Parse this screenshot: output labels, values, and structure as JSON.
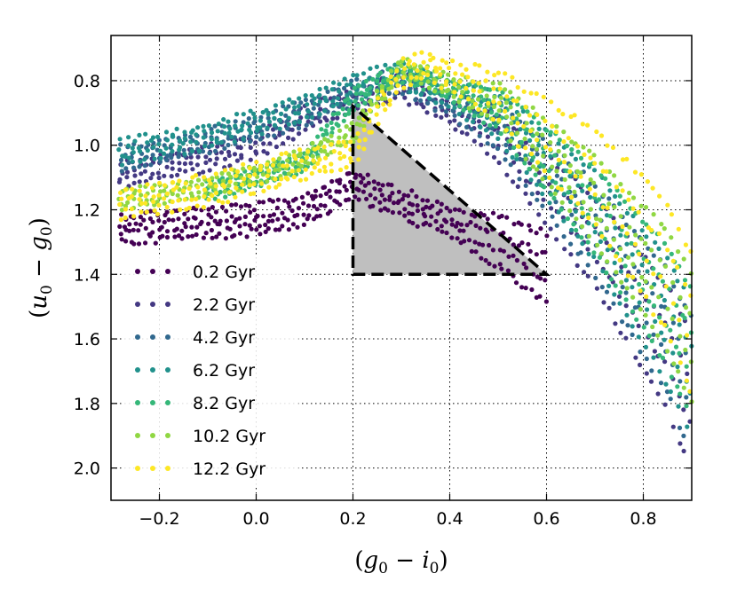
{
  "chart_data": {
    "type": "scatter",
    "title": "",
    "xlabel_parts": {
      "open": "(",
      "a": "g",
      "a_sub": "0",
      "op": " − ",
      "b": "i",
      "b_sub": "0",
      "close": ")"
    },
    "ylabel_parts": {
      "open": "(",
      "a": "u",
      "a_sub": "0",
      "op": " − ",
      "b": "g",
      "b_sub": "0",
      "close": ")"
    },
    "xlim": [
      -0.3,
      0.9
    ],
    "ylim": [
      2.1,
      0.66
    ],
    "y_inverted": true,
    "grid": true,
    "xticks": [
      -0.2,
      0.0,
      0.2,
      0.4,
      0.6,
      0.8
    ],
    "xtick_labels": [
      "−0.2",
      "0.0",
      "0.2",
      "0.4",
      "0.6",
      "0.8"
    ],
    "yticks": [
      0.8,
      1.0,
      1.2,
      1.4,
      1.6,
      1.8,
      2.0
    ],
    "ytick_labels": [
      "0.8",
      "1.0",
      "1.2",
      "1.4",
      "1.6",
      "1.8",
      "2.0"
    ],
    "legend_position": "lower-left",
    "selection_region": {
      "shape": "triangle",
      "vertices": [
        [
          0.2,
          0.88
        ],
        [
          0.2,
          1.4
        ],
        [
          0.6,
          1.4
        ]
      ],
      "fill": "#bfbfbf",
      "edge": "dashed-black"
    },
    "series": [
      {
        "name": "0.2 Gyr",
        "color": "#440154",
        "x": [
          -0.28,
          -0.2,
          -0.1,
          0.0,
          0.1,
          0.2,
          0.3,
          0.4,
          0.5,
          0.6
        ],
        "y": [
          1.26,
          1.25,
          1.24,
          1.23,
          1.2,
          1.12,
          1.18,
          1.24,
          1.3,
          1.38
        ],
        "spread": 0.03
      },
      {
        "name": "2.2 Gyr",
        "color": "#443983",
        "x": [
          -0.28,
          -0.2,
          -0.1,
          0.0,
          0.05,
          0.1,
          0.2,
          0.3,
          0.5,
          0.7,
          0.85,
          0.9
        ],
        "y": [
          1.09,
          1.07,
          1.04,
          1.0,
          0.96,
          0.92,
          0.86,
          0.82,
          0.98,
          1.3,
          1.63,
          1.8
        ],
        "spread": 0.025
      },
      {
        "name": "4.2 Gyr",
        "color": "#31688e",
        "x": [
          -0.28,
          -0.2,
          -0.1,
          0.0,
          0.1,
          0.2,
          0.3,
          0.5,
          0.7,
          0.85,
          0.9
        ],
        "y": [
          1.04,
          1.02,
          0.99,
          0.95,
          0.9,
          0.84,
          0.8,
          0.94,
          1.26,
          1.58,
          1.75
        ],
        "spread": 0.025
      },
      {
        "name": "6.2 Gyr",
        "color": "#21918c",
        "x": [
          -0.28,
          -0.2,
          -0.1,
          0.0,
          0.1,
          0.2,
          0.3,
          0.5,
          0.7,
          0.85,
          0.9
        ],
        "y": [
          1.02,
          1.0,
          0.97,
          0.93,
          0.88,
          0.82,
          0.78,
          0.91,
          1.22,
          1.55,
          1.7
        ],
        "spread": 0.025
      },
      {
        "name": "8.2 Gyr",
        "color": "#35b779",
        "x": [
          -0.1,
          0.0,
          0.1,
          0.2,
          0.3,
          0.5,
          0.7,
          0.85,
          0.9
        ],
        "y": [
          1.14,
          1.1,
          1.05,
          0.86,
          0.77,
          0.89,
          1.2,
          1.5,
          1.65
        ],
        "spread": 0.02
      },
      {
        "name": "10.2 Gyr",
        "color": "#90d743",
        "x": [
          -0.28,
          -0.1,
          0.0,
          0.1,
          0.2,
          0.3,
          0.5,
          0.7,
          0.85,
          0.9
        ],
        "y": [
          1.17,
          1.13,
          1.09,
          1.04,
          0.96,
          0.76,
          0.87,
          1.17,
          1.45,
          1.6
        ],
        "spread": 0.02
      },
      {
        "name": "12.2 Gyr",
        "color": "#fde725",
        "x": [
          -0.28,
          -0.1,
          0.0,
          0.1,
          0.2,
          0.3,
          0.35,
          0.5,
          0.7,
          0.85,
          0.9
        ],
        "y": [
          1.18,
          1.14,
          1.1,
          1.06,
          1.02,
          0.78,
          0.75,
          0.85,
          1.1,
          1.38,
          1.55
        ],
        "spread": 0.03
      }
    ]
  }
}
